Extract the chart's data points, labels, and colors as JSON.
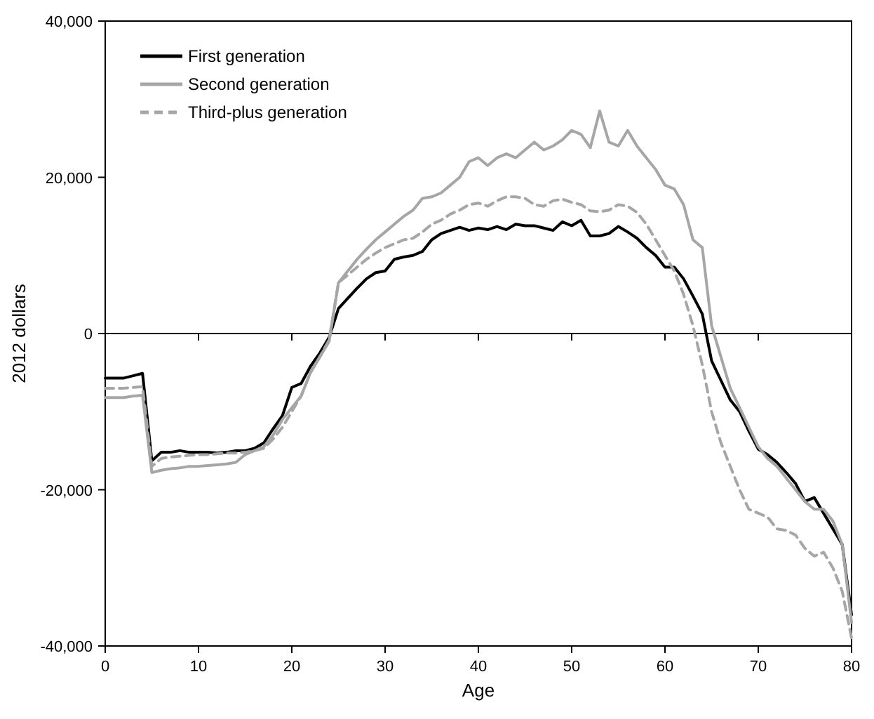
{
  "chart_data": {
    "type": "line",
    "xlabel": "Age",
    "ylabel": "2012 dollars",
    "xlim": [
      0,
      80
    ],
    "ylim": [
      -40000,
      40000
    ],
    "xticks": [
      0,
      10,
      20,
      30,
      40,
      50,
      60,
      70,
      80
    ],
    "yticks": [
      {
        "value": -40000,
        "label": "-40,000"
      },
      {
        "value": -20000,
        "label": "-20,000"
      },
      {
        "value": 0,
        "label": "0"
      },
      {
        "value": 20000,
        "label": "20,000"
      },
      {
        "value": 40000,
        "label": "40,000"
      }
    ],
    "grid": false,
    "ref_lines": [
      {
        "axis": "y",
        "value": 0,
        "color": "#000000"
      }
    ],
    "legend": "top left",
    "marker": "none",
    "x": [
      0,
      1,
      2,
      3,
      4,
      5,
      6,
      7,
      8,
      9,
      10,
      11,
      12,
      13,
      14,
      15,
      16,
      17,
      18,
      19,
      20,
      21,
      22,
      23,
      24,
      25,
      26,
      27,
      28,
      29,
      30,
      31,
      32,
      33,
      34,
      35,
      36,
      37,
      38,
      39,
      40,
      41,
      42,
      43,
      44,
      45,
      46,
      47,
      48,
      49,
      50,
      51,
      52,
      53,
      54,
      55,
      56,
      57,
      58,
      59,
      60,
      61,
      62,
      63,
      64,
      65,
      66,
      67,
      68,
      69,
      70,
      71,
      72,
      73,
      74,
      75,
      76,
      77,
      78,
      79,
      80
    ],
    "series": [
      {
        "name": "First generation",
        "color": "#000000",
        "line_style": "solid",
        "values": [
          -5700,
          -5700,
          -5700,
          -5400,
          -5100,
          -16300,
          -15200,
          -15200,
          -15000,
          -15200,
          -15200,
          -15200,
          -15300,
          -15200,
          -15000,
          -15000,
          -14700,
          -14000,
          -12200,
          -10500,
          -6900,
          -6400,
          -4200,
          -2500,
          -500,
          3200,
          4500,
          5800,
          7000,
          7800,
          8000,
          9500,
          9800,
          10000,
          10500,
          12000,
          12800,
          13200,
          13600,
          13200,
          13500,
          13300,
          13700,
          13300,
          14000,
          13800,
          13800,
          13500,
          13200,
          14300,
          13800,
          14500,
          12500,
          12500,
          12800,
          13700,
          13000,
          12200,
          11000,
          10000,
          8500,
          8500,
          7000,
          4800,
          2500,
          -3500,
          -6000,
          -8500,
          -10000,
          -12500,
          -14800,
          -15500,
          -16500,
          -17800,
          -19200,
          -21500,
          -21000,
          -23000,
          -25000,
          -27000,
          -36000
        ]
      },
      {
        "name": "Second generation",
        "color": "#a6a6a6",
        "line_style": "solid",
        "values": [
          -8200,
          -8200,
          -8200,
          -8000,
          -7900,
          -17800,
          -17500,
          -17300,
          -17200,
          -17000,
          -17000,
          -16900,
          -16800,
          -16700,
          -16500,
          -15500,
          -15000,
          -14500,
          -13000,
          -11000,
          -9500,
          -8000,
          -5000,
          -3000,
          -1000,
          6500,
          8000,
          9500,
          10800,
          12000,
          13000,
          14000,
          15000,
          15800,
          17300,
          17500,
          18000,
          19000,
          20000,
          22000,
          22500,
          21500,
          22500,
          23000,
          22500,
          23500,
          24500,
          23500,
          24000,
          24800,
          26000,
          25500,
          23800,
          28500,
          24500,
          24000,
          26000,
          24000,
          22500,
          21000,
          19000,
          18500,
          16500,
          12000,
          11000,
          1000,
          -3000,
          -7000,
          -9500,
          -12000,
          -14500,
          -16000,
          -17000,
          -18500,
          -20000,
          -21500,
          -22500,
          -22500,
          -24000,
          -27000,
          -37000
        ]
      },
      {
        "name": "Third-plus generation",
        "color": "#a6a6a6",
        "line_style": "dashed",
        "values": [
          -7000,
          -7000,
          -7000,
          -6900,
          -6800,
          -17000,
          -16000,
          -15800,
          -15700,
          -15600,
          -15500,
          -15500,
          -15400,
          -15300,
          -15300,
          -15200,
          -15000,
          -14700,
          -13500,
          -12000,
          -10000,
          -8000,
          -5000,
          -3000,
          -800,
          6500,
          7500,
          8500,
          9500,
          10300,
          11000,
          11500,
          12000,
          12200,
          13000,
          14000,
          14500,
          15300,
          15800,
          16500,
          16700,
          16300,
          17000,
          17500,
          17500,
          17300,
          16500,
          16300,
          17000,
          17200,
          16800,
          16500,
          15700,
          15600,
          15800,
          16500,
          16300,
          15500,
          14000,
          12000,
          10000,
          8000,
          5000,
          1000,
          -4000,
          -10000,
          -14000,
          -17000,
          -20000,
          -22500,
          -23000,
          -23500,
          -25000,
          -25200,
          -25800,
          -27500,
          -28500,
          -28000,
          -30000,
          -33000,
          -39000
        ]
      }
    ]
  }
}
